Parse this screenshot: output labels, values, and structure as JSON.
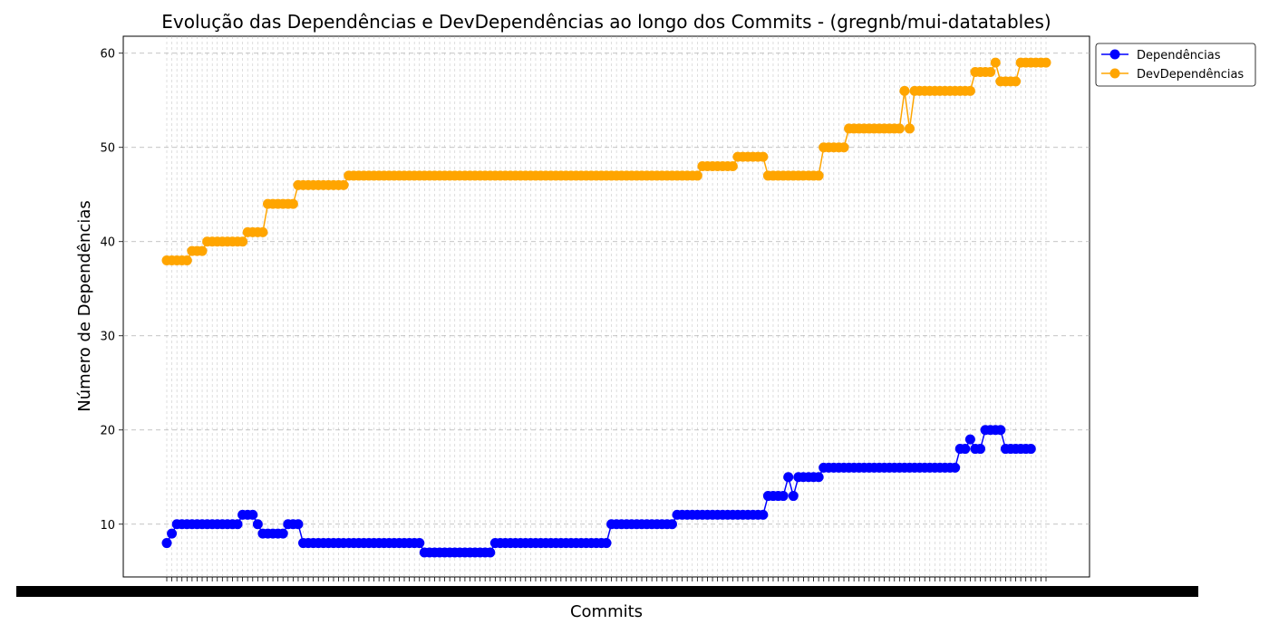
{
  "chart_data": {
    "type": "line",
    "title": "Evolução das Dependências e DevDependências ao longo dos Commits - (gregnb/mui-datatables)",
    "xlabel": "Commits",
    "ylabel": "Número de Dependências",
    "ylim": [
      4.4,
      61.8
    ],
    "yticks": [
      10,
      20,
      30,
      40,
      50,
      60
    ],
    "grid": true,
    "legend_position": "top-right-outside",
    "x_tick_labels_note": "overlapping commit hashes (illegible)",
    "series": [
      {
        "name": "Dependências",
        "color": "#0000ff",
        "segments": [
          [
            8,
            1
          ],
          [
            9,
            1
          ],
          [
            10,
            13
          ],
          [
            11,
            3
          ],
          [
            10,
            1
          ],
          [
            9,
            5
          ],
          [
            10,
            3
          ],
          [
            8,
            24
          ],
          [
            7,
            14
          ],
          [
            8,
            23
          ],
          [
            10,
            13
          ],
          [
            11,
            18
          ],
          [
            13,
            4
          ],
          [
            15,
            1
          ],
          [
            13,
            1
          ],
          [
            15,
            5
          ],
          [
            16,
            27
          ],
          [
            18,
            2
          ],
          [
            19,
            1
          ],
          [
            18,
            2
          ],
          [
            20,
            4
          ],
          [
            18,
            6
          ]
        ]
      },
      {
        "name": "DevDependências",
        "color": "#ffa500",
        "segments": [
          [
            38,
            5
          ],
          [
            39,
            3
          ],
          [
            40,
            8
          ],
          [
            41,
            4
          ],
          [
            44,
            6
          ],
          [
            46,
            10
          ],
          [
            47,
            70
          ],
          [
            48,
            7
          ],
          [
            49,
            6
          ],
          [
            47,
            11
          ],
          [
            50,
            5
          ],
          [
            52,
            11
          ],
          [
            56,
            1
          ],
          [
            52,
            1
          ],
          [
            56,
            12
          ],
          [
            58,
            4
          ],
          [
            59,
            1
          ],
          [
            57,
            4
          ],
          [
            59,
            6
          ]
        ]
      }
    ]
  }
}
